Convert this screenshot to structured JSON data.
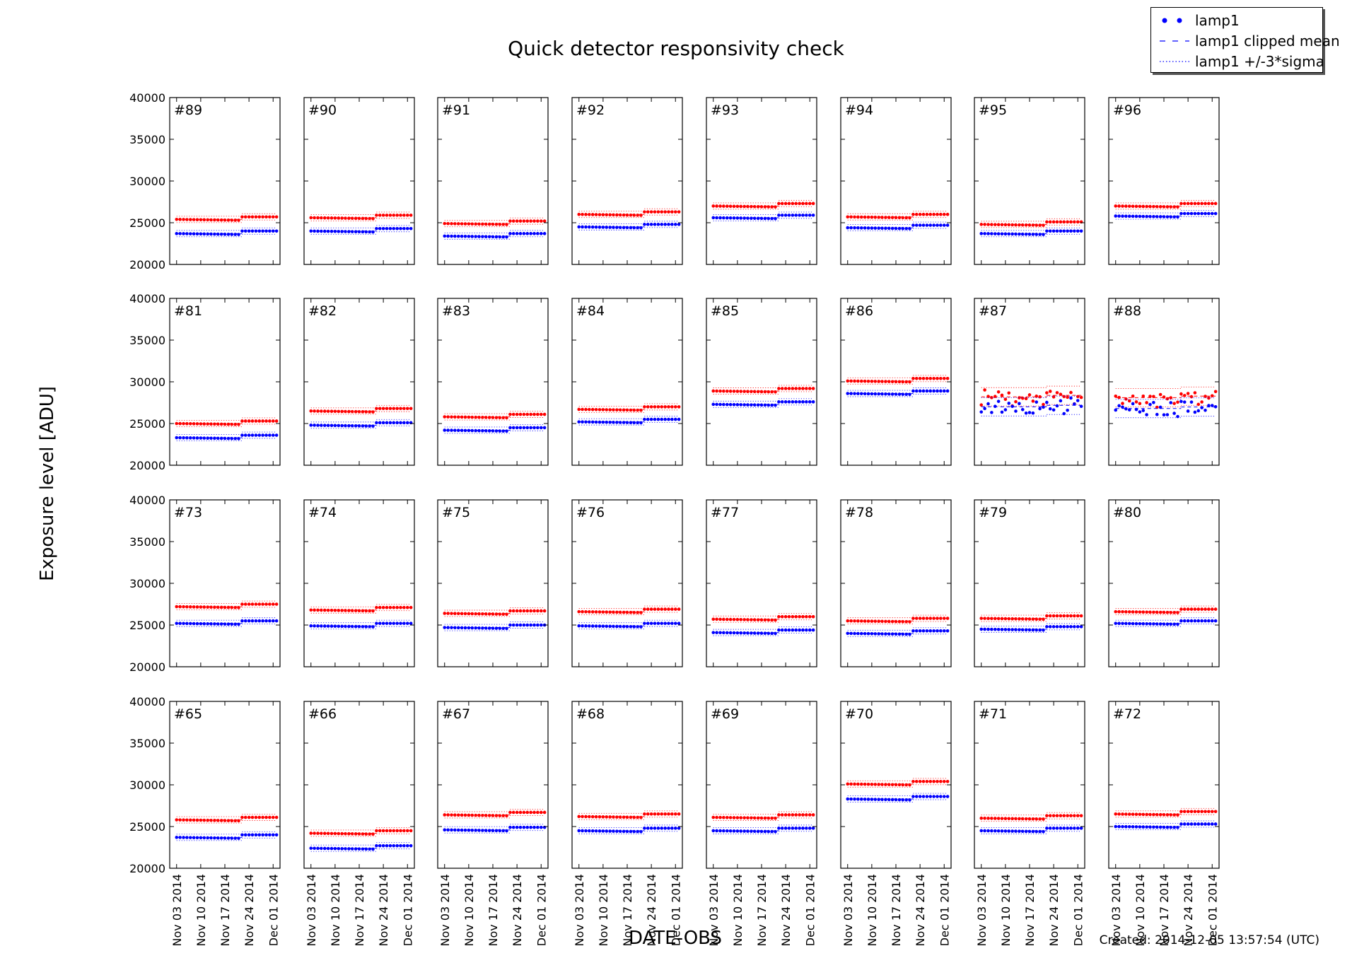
{
  "chart_data": {
    "type": "scatter",
    "title": "Quick detector responsivity check",
    "xlabel": "DATE-OBS",
    "ylabel": "Exposure level [ADU]",
    "footer": "Created: 2014-12-05 13:57:54 (UTC)",
    "ylim": [
      20000,
      40000
    ],
    "yticks": [
      20000,
      25000,
      30000,
      35000,
      40000
    ],
    "xlim": [
      "2014-11-01",
      "2014-12-03"
    ],
    "xticks": [
      "Nov 03 2014",
      "Nov 10 2014",
      "Nov 17 2014",
      "Nov 24 2014",
      "Dec 01 2014"
    ],
    "grid": false,
    "legend": {
      "placement": "top-right",
      "entries": [
        {
          "label": "lamp1",
          "style": "dots"
        },
        {
          "label": "lamp1 clipped mean",
          "style": "dashed"
        },
        {
          "label": "lamp1 +/-3*sigma",
          "style": "dotted"
        }
      ]
    },
    "dates": [
      "2014-11-03",
      "2014-11-04",
      "2014-11-05",
      "2014-11-06",
      "2014-11-07",
      "2014-11-08",
      "2014-11-09",
      "2014-11-10",
      "2014-11-11",
      "2014-11-12",
      "2014-11-13",
      "2014-11-14",
      "2014-11-15",
      "2014-11-16",
      "2014-11-17",
      "2014-11-18",
      "2014-11-19",
      "2014-11-20",
      "2014-11-21",
      "2014-11-22",
      "2014-11-23",
      "2014-11-24",
      "2014-11-25",
      "2014-11-26",
      "2014-11-27",
      "2014-11-28",
      "2014-11-29",
      "2014-11-30",
      "2014-12-01",
      "2014-12-02"
    ],
    "series_colors": {
      "red": "#ff0000",
      "blue": "#0000ff"
    },
    "panels": [
      {
        "label": "#89",
        "red": 25400,
        "blue": 23700,
        "noisy": false
      },
      {
        "label": "#90",
        "red": 25600,
        "blue": 24000,
        "noisy": false
      },
      {
        "label": "#91",
        "red": 24900,
        "blue": 23400,
        "noisy": false
      },
      {
        "label": "#92",
        "red": 26000,
        "blue": 24500,
        "noisy": false
      },
      {
        "label": "#93",
        "red": 27000,
        "blue": 25600,
        "noisy": false
      },
      {
        "label": "#94",
        "red": 25700,
        "blue": 24400,
        "noisy": false
      },
      {
        "label": "#95",
        "red": 24800,
        "blue": 23700,
        "noisy": false
      },
      {
        "label": "#96",
        "red": 27000,
        "blue": 25800,
        "noisy": false
      },
      {
        "label": "#81",
        "red": 25000,
        "blue": 23300,
        "noisy": false
      },
      {
        "label": "#82",
        "red": 26500,
        "blue": 24800,
        "noisy": false
      },
      {
        "label": "#83",
        "red": 25800,
        "blue": 24200,
        "noisy": false
      },
      {
        "label": "#84",
        "red": 26700,
        "blue": 25200,
        "noisy": false
      },
      {
        "label": "#85",
        "red": 28900,
        "blue": 27300,
        "noisy": false
      },
      {
        "label": "#86",
        "red": 30100,
        "blue": 28600,
        "noisy": false
      },
      {
        "label": "#87",
        "red": 28200,
        "blue": 27000,
        "noisy": true
      },
      {
        "label": "#88",
        "red": 28100,
        "blue": 26800,
        "noisy": true
      },
      {
        "label": "#73",
        "red": 27200,
        "blue": 25200,
        "noisy": false
      },
      {
        "label": "#74",
        "red": 26800,
        "blue": 24900,
        "noisy": false
      },
      {
        "label": "#75",
        "red": 26400,
        "blue": 24700,
        "noisy": false
      },
      {
        "label": "#76",
        "red": 26600,
        "blue": 24900,
        "noisy": false
      },
      {
        "label": "#77",
        "red": 25700,
        "blue": 24100,
        "noisy": false
      },
      {
        "label": "#78",
        "red": 25500,
        "blue": 24000,
        "noisy": false
      },
      {
        "label": "#79",
        "red": 25800,
        "blue": 24500,
        "noisy": false
      },
      {
        "label": "#80",
        "red": 26600,
        "blue": 25200,
        "noisy": false
      },
      {
        "label": "#65",
        "red": 25800,
        "blue": 23700,
        "noisy": false
      },
      {
        "label": "#66",
        "red": 24200,
        "blue": 22400,
        "noisy": false
      },
      {
        "label": "#67",
        "red": 26400,
        "blue": 24600,
        "noisy": false
      },
      {
        "label": "#68",
        "red": 26200,
        "blue": 24500,
        "noisy": false
      },
      {
        "label": "#69",
        "red": 26100,
        "blue": 24500,
        "noisy": false
      },
      {
        "label": "#70",
        "red": 30100,
        "blue": 28300,
        "noisy": false
      },
      {
        "label": "#71",
        "red": 26000,
        "blue": 24500,
        "noisy": false
      },
      {
        "label": "#72",
        "red": 26500,
        "blue": 25000,
        "noisy": false
      }
    ]
  }
}
